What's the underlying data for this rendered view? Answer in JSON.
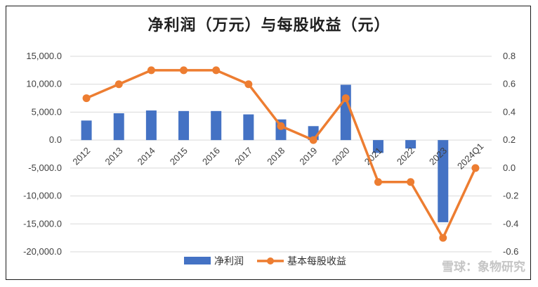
{
  "chart_data": {
    "type": "bar+line",
    "title": "净利润（万元）与每股收益（元）",
    "categories": [
      "2012",
      "2013",
      "2014",
      "2015",
      "2016",
      "2017",
      "2018",
      "2019",
      "2020",
      "2021",
      "2022",
      "2023",
      "2024Q1"
    ],
    "series": [
      {
        "name": "净利润",
        "type": "bar",
        "axis": "left",
        "color": "#4472C4",
        "values": [
          3500,
          4800,
          5300,
          5200,
          5200,
          4600,
          3700,
          2500,
          9900,
          -2300,
          -1500,
          -14700,
          null
        ]
      },
      {
        "name": "基本每股收益",
        "type": "line",
        "axis": "right",
        "color": "#ED7D31",
        "values": [
          0.5,
          0.6,
          0.7,
          0.7,
          0.7,
          0.6,
          0.3,
          0.2,
          0.5,
          -0.1,
          -0.1,
          -0.5,
          0.0
        ]
      }
    ],
    "left_axis": {
      "min": -20000,
      "max": 15000,
      "step": 5000,
      "tick_labels": [
        "15,000.0",
        "10,000.0",
        "5,000.0",
        "0.0",
        "-5,000.0",
        "-10,000.0",
        "-15,000.0",
        "-20,000.0"
      ]
    },
    "right_axis": {
      "min": -0.6,
      "max": 0.8,
      "step": 0.2,
      "tick_labels": [
        "0.8",
        "0.6",
        "0.4",
        "0.2",
        "0.0",
        "-0.2",
        "-0.4",
        "-0.6"
      ]
    },
    "grid": true,
    "legend_position": "bottom"
  },
  "watermark": "雪球：象物研究"
}
